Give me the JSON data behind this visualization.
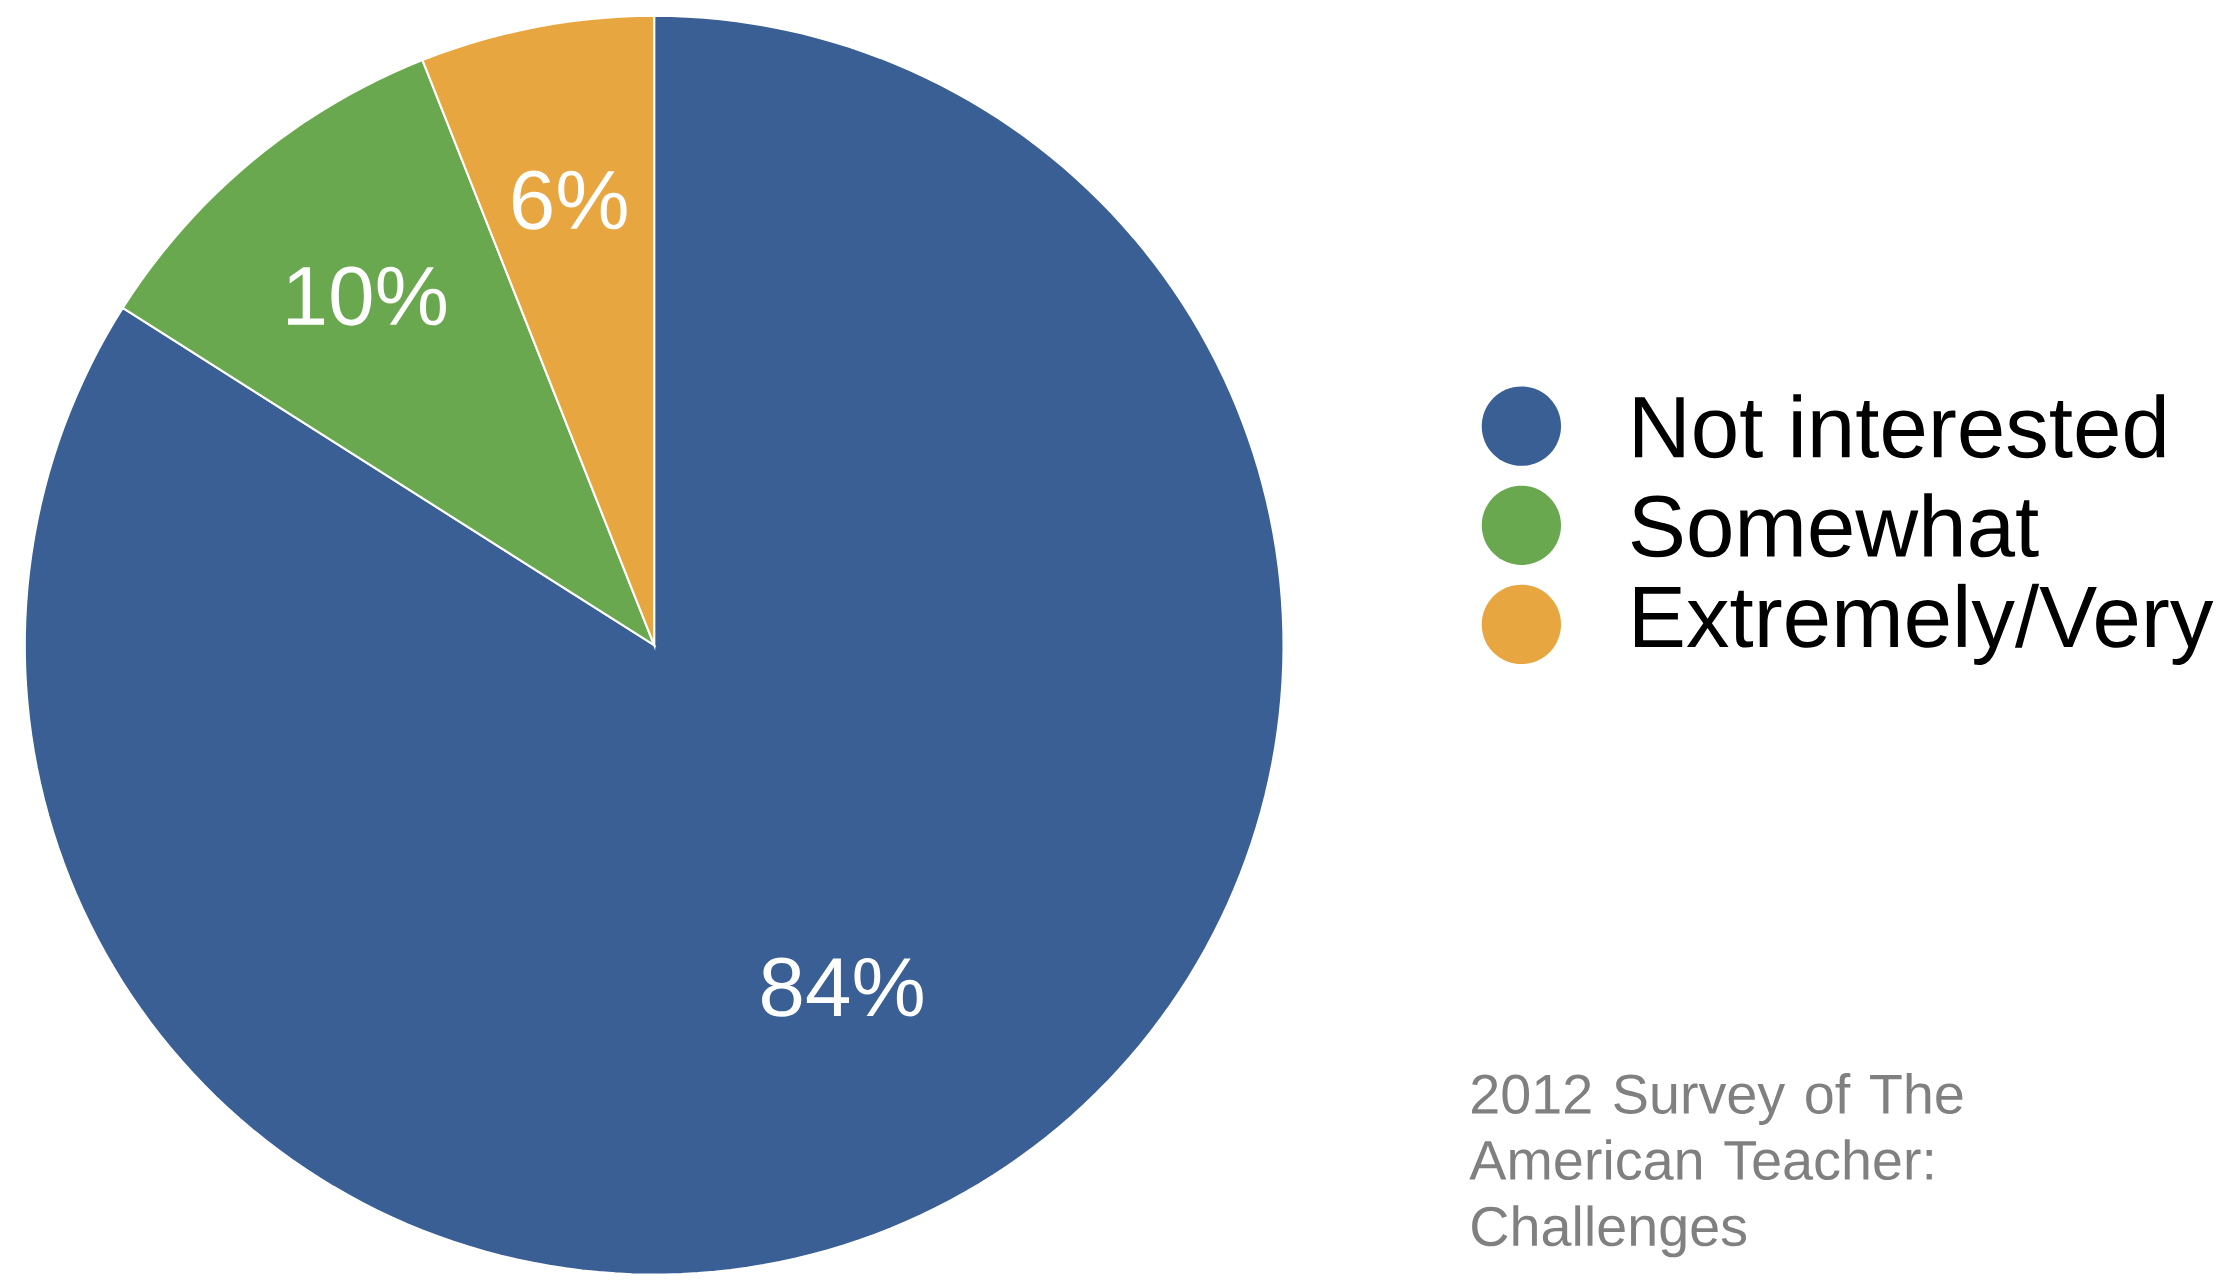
{
  "chart_data": {
    "type": "pie",
    "categories": [
      "Not interested",
      "Somewhat",
      "Extremely/Very"
    ],
    "values": [
      84,
      10,
      6
    ],
    "colors": [
      "#3a5f95",
      "#6aa84f",
      "#e8a640"
    ],
    "value_labels": [
      "84%",
      "10%",
      "6%"
    ],
    "legend": "right",
    "annotations": [
      "2012 Survey of The American Teacher: Challenges"
    ]
  }
}
